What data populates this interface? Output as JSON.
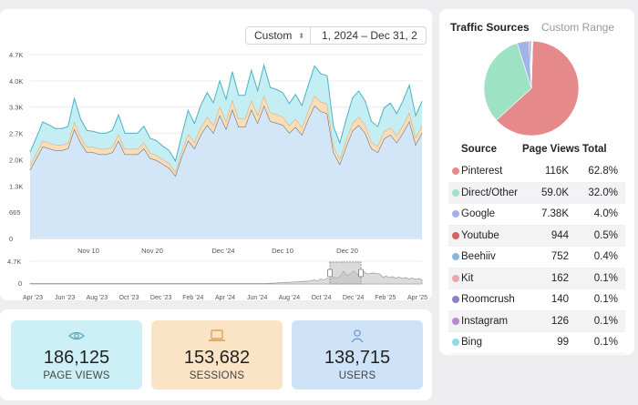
{
  "controls": {
    "range_select": "Custom",
    "date_range": "1, 2024 – Dec 31, 2"
  },
  "chart_data": [
    {
      "type": "area",
      "stacked": true,
      "y_ticks": [
        "0",
        "665",
        "1.3K",
        "2.0K",
        "2.7K",
        "3.3K",
        "4.0K",
        "4.7K"
      ],
      "ylim": [
        0,
        4700
      ],
      "x_ticks": [
        "Nov 10",
        "Nov 20",
        "Dec '24",
        "Dec 10",
        "Dec 20"
      ],
      "series": [
        {
          "color": "#d3e6f8",
          "values": [
            1750,
            2050,
            2350,
            2300,
            2250,
            2250,
            2300,
            2800,
            2450,
            2200,
            2200,
            2150,
            2150,
            2200,
            2500,
            2150,
            2150,
            2150,
            2300,
            2050,
            2000,
            1900,
            1800,
            1600,
            2100,
            2500,
            2300,
            2650,
            2900,
            2700,
            3150,
            2800,
            3300,
            2850,
            2850,
            3300,
            2950,
            3400,
            3000,
            2950,
            2900,
            2700,
            2850,
            2650,
            3050,
            3400,
            3250,
            3200,
            2200,
            1900,
            2350,
            2750,
            2900,
            2700,
            2300,
            2200,
            2550,
            2650,
            2450,
            2700,
            3000,
            2400,
            2700
          ]
        },
        {
          "color": "#f8ddb8",
          "values": [
            110,
            130,
            150,
            150,
            140,
            140,
            140,
            180,
            150,
            140,
            140,
            140,
            140,
            140,
            160,
            140,
            140,
            140,
            150,
            130,
            130,
            120,
            120,
            100,
            140,
            170,
            160,
            190,
            210,
            190,
            230,
            200,
            240,
            210,
            210,
            240,
            210,
            250,
            220,
            220,
            210,
            190,
            210,
            190,
            220,
            250,
            240,
            240,
            160,
            140,
            170,
            200,
            210,
            200,
            170,
            160,
            190,
            190,
            180,
            200,
            220,
            180,
            190
          ]
        },
        {
          "color": "#c4eef4",
          "values": [
            350,
            400,
            480,
            450,
            420,
            420,
            420,
            600,
            450,
            420,
            400,
            400,
            400,
            420,
            500,
            400,
            400,
            400,
            420,
            380,
            370,
            340,
            330,
            280,
            400,
            600,
            480,
            560,
            620,
            580,
            650,
            560,
            720,
            600,
            600,
            760,
            620,
            780,
            640,
            640,
            610,
            560,
            620,
            560,
            640,
            760,
            720,
            720,
            500,
            400,
            520,
            640,
            660,
            620,
            520,
            500,
            600,
            620,
            560,
            620,
            700,
            560,
            620
          ]
        }
      ]
    },
    {
      "type": "area",
      "y_ticks": [
        "4.7K",
        "0"
      ],
      "x_ticks": [
        "Apr '23",
        "Jun '23",
        "Aug '23",
        "Oct '23",
        "Dec '23",
        "Feb '24",
        "Apr '24",
        "Jun '24",
        "Aug '24",
        "Oct '24",
        "Dec '24",
        "Feb '25",
        "Apr '25"
      ]
    }
  ],
  "stats": {
    "page_views": {
      "value": "186,125",
      "label": "PAGE VIEWS",
      "icon": "eye-icon"
    },
    "sessions": {
      "value": "153,682",
      "label": "SESSIONS",
      "icon": "laptop-icon"
    },
    "users": {
      "value": "138,715",
      "label": "USERS",
      "icon": "user-icon"
    }
  },
  "sources": {
    "title": "Traffic Sources",
    "custom_range": "Custom Range",
    "headers": {
      "source": "Source",
      "page_views": "Page Views",
      "total": "Total"
    },
    "rows": [
      {
        "name": "Pinterest",
        "page_views": "116K",
        "total": "62.8%",
        "pct": 62.8,
        "color": "#e5898a"
      },
      {
        "name": "Direct/Other",
        "page_views": "59.0K",
        "total": "32.0%",
        "pct": 32.0,
        "color": "#9ee2c4"
      },
      {
        "name": "Google",
        "page_views": "7.38K",
        "total": "4.0%",
        "pct": 4.0,
        "color": "#a2b3ea"
      },
      {
        "name": "Youtube",
        "page_views": "944",
        "total": "0.5%",
        "pct": 0.5,
        "color": "#d3645f"
      },
      {
        "name": "Beehiiv",
        "page_views": "752",
        "total": "0.4%",
        "pct": 0.4,
        "color": "#89b7da"
      },
      {
        "name": "Kit",
        "page_views": "162",
        "total": "0.1%",
        "pct": 0.1,
        "color": "#eba6b0"
      },
      {
        "name": "Roomcrush",
        "page_views": "140",
        "total": "0.1%",
        "pct": 0.1,
        "color": "#8f7fc4"
      },
      {
        "name": "Instagram",
        "page_views": "126",
        "total": "0.1%",
        "pct": 0.1,
        "color": "#b98ad0"
      },
      {
        "name": "Bing",
        "page_views": "99",
        "total": "0.1%",
        "pct": 0.1,
        "color": "#8fdbe8"
      }
    ]
  }
}
